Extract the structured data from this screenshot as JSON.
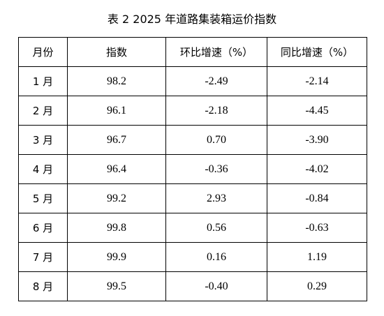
{
  "caption": "表 2  2025 年道路集装箱运价指数",
  "table": {
    "headers": [
      "月份",
      "指数",
      "环比增速（%）",
      "同比增速（%）"
    ],
    "rows": [
      [
        "1 月",
        "98.2",
        "-2.49",
        "-2.14"
      ],
      [
        "2 月",
        "96.1",
        "-2.18",
        "-4.45"
      ],
      [
        "3 月",
        "96.7",
        "0.70",
        "-3.90"
      ],
      [
        "4 月",
        "96.4",
        "-0.36",
        "-4.02"
      ],
      [
        "5 月",
        "99.2",
        "2.93",
        "-0.84"
      ],
      [
        "6 月",
        "99.8",
        "0.56",
        "-0.63"
      ],
      [
        "7 月",
        "99.9",
        "0.16",
        "1.19"
      ],
      [
        "8 月",
        "99.5",
        "-0.40",
        "0.29"
      ]
    ]
  }
}
